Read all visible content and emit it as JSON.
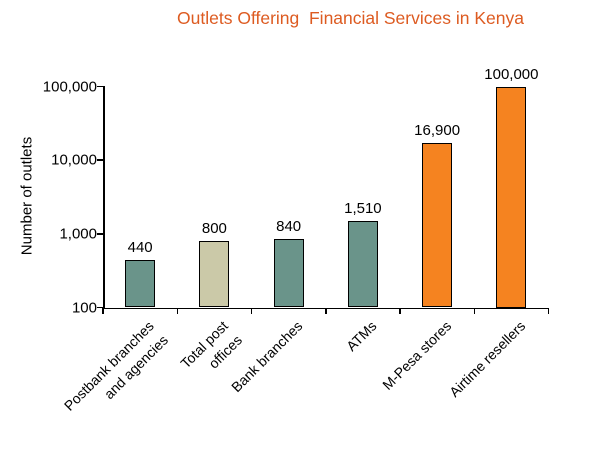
{
  "title": "Outlets Offering  Financial Services in Kenya",
  "colors": {
    "title": "#DD5B21",
    "teal_bar": "#6A948A",
    "beige_bar": "#CBC9A8",
    "orange_bar": "#F58320",
    "axis": "#000000",
    "label_text": "#000000"
  },
  "chart_data": {
    "type": "bar",
    "title": "Outlets Offering  Financial Services in Kenya",
    "xlabel": "",
    "ylabel": "Number of outlets",
    "yscale": "log",
    "ylim": [
      100,
      100000
    ],
    "grid": false,
    "legend": "none",
    "ytick_values": [
      100,
      1000,
      10000,
      100000
    ],
    "ytick_labels": [
      "100",
      "1,000",
      "10,000",
      "100,000"
    ],
    "categories": [
      "Postbank branches\nand agencies",
      "Total post\noffices",
      "Bank branches",
      "ATMs",
      "M-Pesa stores",
      "Airtime resellers"
    ],
    "values": [
      440,
      800,
      840,
      1510,
      16900,
      100000
    ],
    "value_labels": [
      "440",
      "800",
      "840",
      "1,510",
      "16,900",
      "100,000"
    ],
    "bar_colors": [
      "#6A948A",
      "#CBC9A8",
      "#6A948A",
      "#6A948A",
      "#F58320",
      "#F58320"
    ]
  }
}
